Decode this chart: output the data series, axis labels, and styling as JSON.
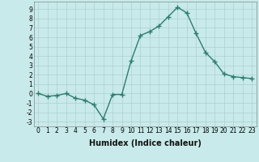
{
  "xlabel": "Humidex (Indice chaleur)",
  "x": [
    0,
    1,
    2,
    3,
    4,
    5,
    6,
    7,
    8,
    9,
    10,
    11,
    12,
    13,
    14,
    15,
    16,
    17,
    18,
    19,
    20,
    21,
    22,
    23
  ],
  "y": [
    0.0,
    -0.3,
    -0.2,
    0.0,
    -0.5,
    -0.7,
    -1.2,
    -2.7,
    -0.1,
    -0.1,
    3.5,
    6.2,
    6.6,
    7.2,
    8.2,
    9.2,
    8.6,
    6.4,
    4.4,
    3.4,
    2.1,
    1.8,
    1.7,
    1.6
  ],
  "line_color": "#2e7d6e",
  "bg_color": "#c8eaea",
  "grid_color": "#b0d0d0",
  "ylim": [
    -3.5,
    9.8
  ],
  "yticks": [
    -3,
    -2,
    -1,
    0,
    1,
    2,
    3,
    4,
    5,
    6,
    7,
    8,
    9
  ],
  "xticks": [
    0,
    1,
    2,
    3,
    4,
    5,
    6,
    7,
    8,
    9,
    10,
    11,
    12,
    13,
    14,
    15,
    16,
    17,
    18,
    19,
    20,
    21,
    22,
    23
  ],
  "marker": "+",
  "marker_size": 5,
  "line_width": 1.0,
  "tick_fontsize": 5.5,
  "xlabel_fontsize": 7
}
